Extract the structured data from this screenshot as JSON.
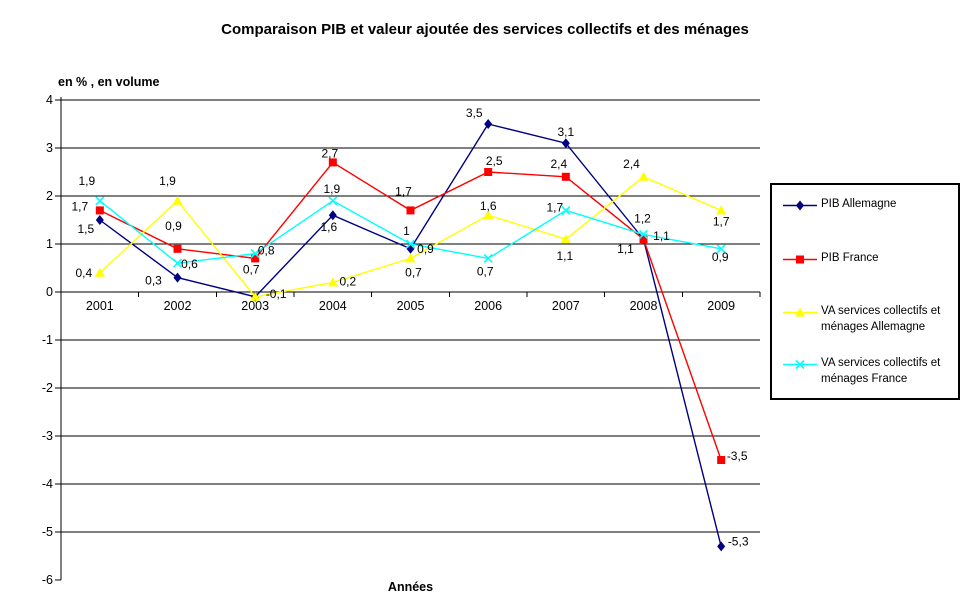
{
  "chart": {
    "title": "Comparaison PIB et valeur ajoutée des services collectifs et des ménages",
    "axis_note": "en % , en volume",
    "xlabel": "Années"
  },
  "chart_data": {
    "type": "line",
    "title": "Comparaison PIB et valeur ajoutée des services collectifs et des ménages",
    "ylabel": "en % , en volume",
    "xlabel": "Années",
    "categories": [
      "2001",
      "2002",
      "2003",
      "2004",
      "2005",
      "2006",
      "2007",
      "2008",
      "2009"
    ],
    "ylim": [
      -6,
      4
    ],
    "yticks": [
      4,
      3,
      2,
      1,
      0,
      -1,
      -2,
      -3,
      -4,
      -5,
      -6
    ],
    "grid": true,
    "legend_position": "right",
    "axis_color": "#000000",
    "background": "#FFFFFF",
    "series": [
      {
        "name": "PIB Allemagne",
        "color": "#000080",
        "marker": "diamond",
        "values": [
          1.5,
          0.3,
          -0.1,
          1.6,
          0.9,
          3.5,
          3.1,
          1.1,
          -5.3
        ],
        "labels": [
          "1,5",
          "0,3",
          "",
          "1,6",
          "0,9",
          "3,5",
          "3,1",
          "1,1",
          "-5,3"
        ],
        "label_offsets": [
          [
            -14,
            9
          ],
          [
            -24,
            3
          ],
          [
            0,
            0
          ],
          [
            -4,
            12
          ],
          [
            15,
            0
          ],
          [
            -14,
            -11
          ],
          [
            0,
            -11
          ],
          [
            -18,
            10
          ],
          [
            17,
            -5
          ]
        ]
      },
      {
        "name": "PIB France",
        "color": "#FF0000",
        "marker": "square",
        "values": [
          1.7,
          0.9,
          0.7,
          2.7,
          1.7,
          2.5,
          2.4,
          1.1,
          -3.5
        ],
        "labels": [
          "1,7",
          "0,9",
          "0,7",
          "2,7",
          "1,7",
          "2,5",
          "2,4",
          "1,1",
          "-3,5"
        ],
        "label_offsets": [
          [
            -20,
            -4
          ],
          [
            -4,
            -23
          ],
          [
            -4,
            11
          ],
          [
            -3,
            -9
          ],
          [
            -7,
            -19
          ],
          [
            6,
            -11
          ],
          [
            -7,
            -13
          ],
          [
            18,
            -3
          ],
          [
            16,
            -4
          ]
        ]
      },
      {
        "name": "VA services collectifs et ménages Allemagne",
        "color": "#FFFF00",
        "marker": "triangle",
        "values": [
          0.4,
          1.9,
          -0.1,
          0.2,
          0.7,
          1.6,
          1.1,
          2.4,
          1.7
        ],
        "labels": [
          "0,4",
          "1,9",
          "-0,1",
          "0,2",
          "0,7",
          "1,6",
          "1,1",
          "2,4",
          "1,7"
        ],
        "label_offsets": [
          [
            -16,
            0
          ],
          [
            -10,
            -20
          ],
          [
            21,
            -3
          ],
          [
            15,
            -1
          ],
          [
            3,
            14
          ],
          [
            0,
            -9
          ],
          [
            -1,
            17
          ],
          [
            -12,
            -13
          ],
          [
            0,
            11
          ]
        ]
      },
      {
        "name": "VA services collectifs et ménages France",
        "color": "#00FFFF",
        "marker": "x",
        "values": [
          1.9,
          0.6,
          0.8,
          1.9,
          1.0,
          0.7,
          1.7,
          1.2,
          0.9
        ],
        "labels": [
          "1,9",
          "0,6",
          "0,8",
          "1,9",
          "1",
          "0,7",
          "1,7",
          "1,2",
          "0,9"
        ],
        "label_offsets": [
          [
            -13,
            -20
          ],
          [
            12,
            1
          ],
          [
            11,
            -3
          ],
          [
            -1,
            -12
          ],
          [
            -4,
            -13
          ],
          [
            -3,
            13
          ],
          [
            -11,
            -3
          ],
          [
            -1,
            -16
          ],
          [
            -1,
            8
          ]
        ]
      }
    ]
  }
}
